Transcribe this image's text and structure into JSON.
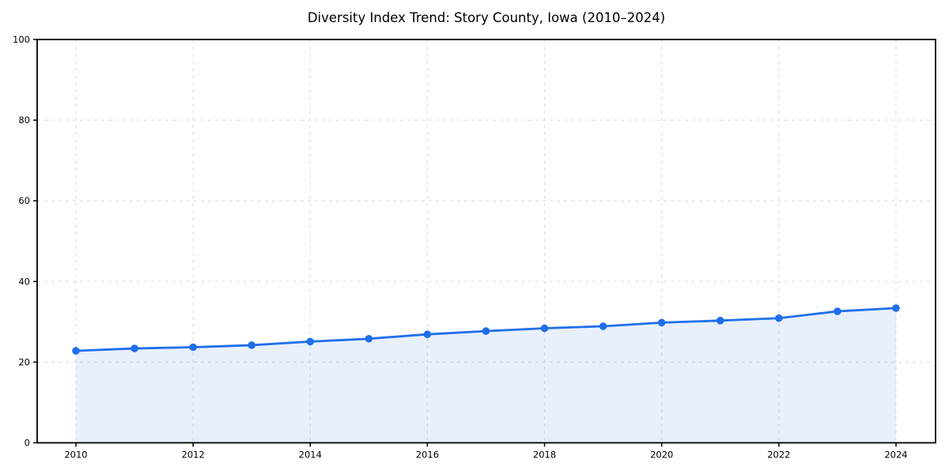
{
  "page": {
    "background": "#ffffff"
  },
  "chart_data": {
    "type": "line",
    "title": "Diversity Index Trend: Story County, Iowa (2010–2024)",
    "x": [
      2010,
      2011,
      2012,
      2013,
      2014,
      2015,
      2016,
      2017,
      2018,
      2019,
      2020,
      2021,
      2022,
      2023,
      2024
    ],
    "values": [
      22.8,
      23.4,
      23.7,
      24.2,
      25.1,
      25.8,
      26.9,
      27.7,
      28.4,
      28.9,
      29.8,
      30.3,
      30.9,
      32.6,
      33.4
    ],
    "xlabel": "",
    "ylabel": "",
    "xlim": [
      2010,
      2024
    ],
    "ylim": [
      0,
      100
    ],
    "xticks": [
      2010,
      2012,
      2014,
      2016,
      2018,
      2020,
      2022,
      2024
    ],
    "yticks": [
      0,
      20,
      40,
      60,
      80,
      100
    ],
    "grid": "dashed",
    "legend": "none",
    "area_fill": true,
    "marker": "circle",
    "colors": {
      "line": "#1f6feb",
      "marker": "#1f6feb",
      "fill": "#1f6feb",
      "fill_opacity": 0.1,
      "grid": "#dedede",
      "axis": "#000000",
      "tick_text": "#000000",
      "title_text": "#000000"
    }
  }
}
